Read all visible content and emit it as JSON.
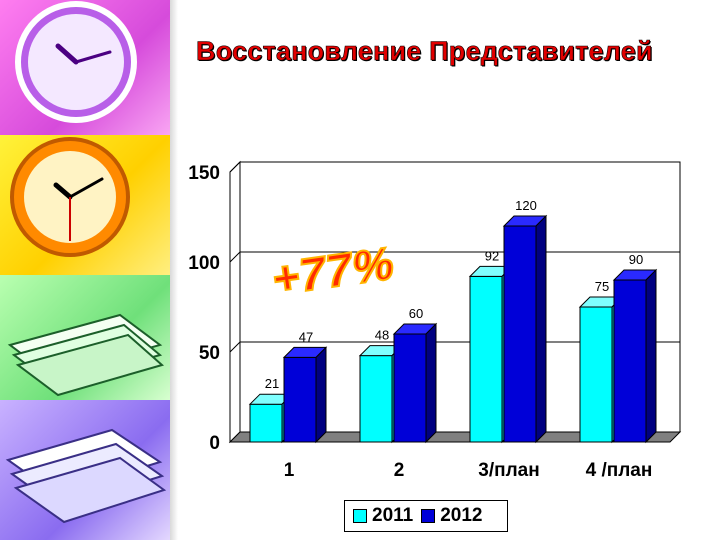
{
  "title": "Восстановление Представителей",
  "chart_data": {
    "type": "bar",
    "title": "",
    "xlabel": "",
    "ylabel": "",
    "categories": [
      "1",
      "2",
      "3/план",
      "4 /план"
    ],
    "series": [
      {
        "name": "2011",
        "values": [
          21,
          48,
          92,
          75
        ],
        "color": "#00ffff"
      },
      {
        "name": "2012",
        "values": [
          47,
          60,
          120,
          90
        ],
        "color": "#0000d8"
      }
    ],
    "ylim": [
      0,
      150
    ],
    "yticks": [
      "0",
      "50",
      "100",
      "150"
    ],
    "grid": "horizontal",
    "legend_placement": "bottom",
    "annotation": "+77%"
  }
}
